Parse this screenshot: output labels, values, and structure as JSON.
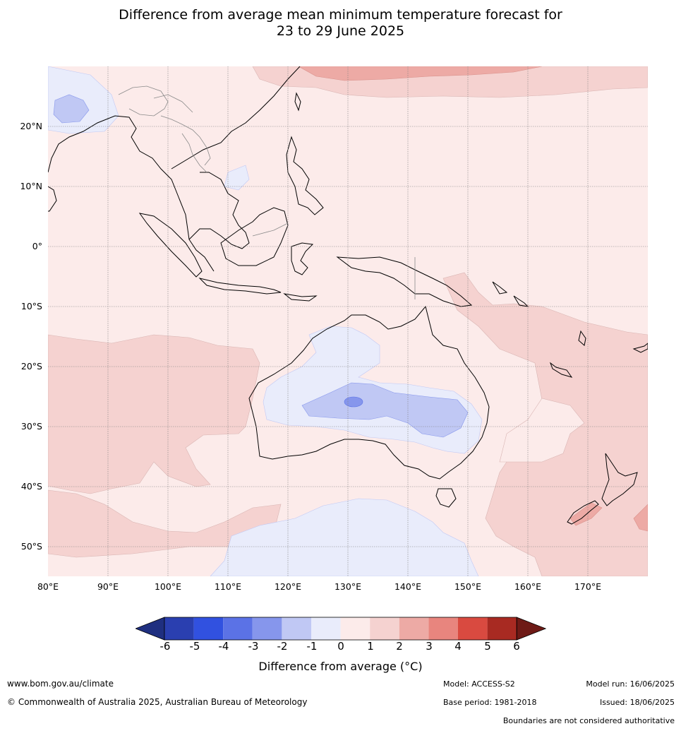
{
  "title": {
    "line1": "Difference from average mean minimum temperature forecast for",
    "line2": "23 to 29 June 2025"
  },
  "map": {
    "lat_labels": [
      "20°N",
      "10°N",
      "0°",
      "10°S",
      "20°S",
      "30°S",
      "40°S",
      "50°S"
    ],
    "lon_labels": [
      "80°E",
      "90°E",
      "100°E",
      "110°E",
      "120°E",
      "130°E",
      "140°E",
      "150°E",
      "160°E",
      "170°E"
    ],
    "extent": {
      "lon_min": 80,
      "lon_max": 180,
      "lat_min": -55,
      "lat_max": 30
    },
    "background_color": "#fcebea"
  },
  "colorbar": {
    "ticks": [
      "-6",
      "-5",
      "-4",
      "-3",
      "-2",
      "-1",
      "0",
      "1",
      "2",
      "3",
      "4",
      "5",
      "6"
    ],
    "colors": [
      "#1f2f80",
      "#2a3fb0",
      "#3151e0",
      "#5b72e6",
      "#8696ec",
      "#c0c8f4",
      "#e9ecfb",
      "#fcebea",
      "#f5d2d0",
      "#edaaa5",
      "#e8857e",
      "#d94a40",
      "#a82a22",
      "#6e1a16"
    ],
    "label": "Difference from average (°C)"
  },
  "footer": {
    "website": "www.bom.gov.au/climate",
    "copyright": "© Commonwealth of Australia 2025, Australian Bureau of Meteorology",
    "model": "Model: ACCESS-S2",
    "base_period": "Base period: 1981-2018",
    "model_run": "Model run: 16/06/2025",
    "issued": "Issued: 18/06/2025",
    "disclaimer": "Boundaries are not considered authoritative"
  }
}
